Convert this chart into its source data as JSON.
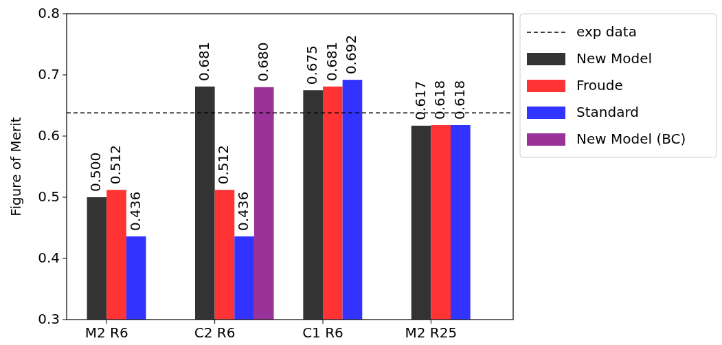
{
  "chart_data": {
    "type": "bar",
    "ylabel": "Figure of Merit",
    "categories": [
      "M2 R6",
      "C2 R6",
      "C1 R6",
      "M2 R25"
    ],
    "series": [
      {
        "name": "New Model",
        "color": "#333333",
        "values": [
          0.5,
          0.681,
          0.675,
          0.617
        ],
        "value_labels": [
          "0.500",
          "0.681",
          "0.675",
          "0.617"
        ]
      },
      {
        "name": "Froude",
        "color": "#ff3333",
        "values": [
          0.512,
          0.512,
          0.681,
          0.618
        ],
        "value_labels": [
          "0.512",
          "0.512",
          "0.681",
          "0.618"
        ]
      },
      {
        "name": "Standard",
        "color": "#3333ff",
        "values": [
          0.436,
          0.436,
          0.692,
          0.618
        ],
        "value_labels": [
          "0.436",
          "0.436",
          "0.692",
          "0.618"
        ]
      },
      {
        "name": "New Model (BC)",
        "color": "#993399",
        "values": [
          null,
          0.68,
          null,
          null
        ],
        "value_labels": [
          null,
          "0.680",
          null,
          null
        ]
      }
    ],
    "ylim": [
      0.3,
      0.8
    ],
    "yticks": [
      0.3,
      0.4,
      0.5,
      0.6,
      0.7,
      0.8
    ],
    "ref_lines": [
      {
        "axis": "y",
        "value": 0.638,
        "label": "exp data",
        "color": "#000000",
        "line_style": "dashed"
      }
    ],
    "legend": "right",
    "grid": false
  }
}
